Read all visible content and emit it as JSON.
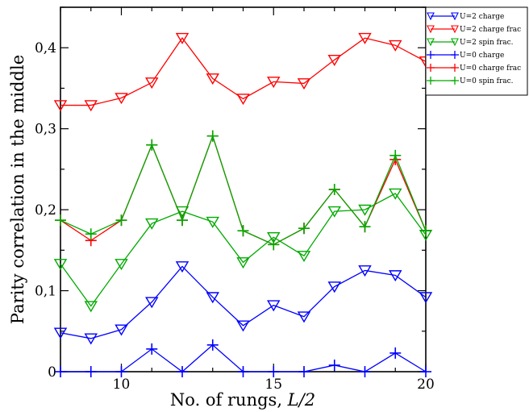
{
  "chart_data": {
    "type": "line",
    "xlabel": "No. of rungs, ",
    "xlabel_italic": "L/2",
    "ylabel": "Parity correlation in the middle",
    "xlim": [
      8,
      20
    ],
    "ylim": [
      0,
      0.45
    ],
    "xticks": [
      {
        "v": 10,
        "label": "10"
      },
      {
        "v": 15,
        "label": "15"
      },
      {
        "v": 20,
        "label": "20"
      }
    ],
    "yticks": [
      {
        "v": 0,
        "label": "0"
      },
      {
        "v": 0.1,
        "label": "0,1"
      },
      {
        "v": 0.2,
        "label": "0,2"
      },
      {
        "v": 0.3,
        "label": "0,3"
      },
      {
        "v": 0.4,
        "label": "0,4"
      }
    ],
    "x_minor_step": 1,
    "y_minor_step": 0.05,
    "grid": false,
    "legend_position": "top-right",
    "series": [
      {
        "name": "U=2 charge",
        "color": "#0000ff",
        "marker": "triangle-down",
        "x": [
          8,
          9,
          10,
          11,
          12,
          13,
          14,
          15,
          16,
          17,
          18,
          19,
          20
        ],
        "values": [
          0.048,
          0.041,
          0.052,
          0.086,
          0.13,
          0.092,
          0.057,
          0.082,
          0.068,
          0.105,
          0.125,
          0.119,
          0.092
        ]
      },
      {
        "name": "U=2 charge frac",
        "color": "#ff0000",
        "marker": "triangle-down",
        "x": [
          8,
          9,
          10,
          11,
          12,
          13,
          14,
          15,
          16,
          17,
          18,
          19,
          20
        ],
        "values": [
          0.329,
          0.329,
          0.338,
          0.357,
          0.412,
          0.362,
          0.337,
          0.358,
          0.356,
          0.385,
          0.412,
          0.403,
          0.383
        ]
      },
      {
        "name": "U=2 spin frac.",
        "color": "#00aa00",
        "marker": "triangle-down",
        "x": [
          8,
          9,
          10,
          11,
          12,
          13,
          14,
          15,
          16,
          17,
          18,
          19,
          20
        ],
        "values": [
          0.133,
          0.081,
          0.133,
          0.183,
          0.198,
          0.185,
          0.135,
          0.166,
          0.143,
          0.198,
          0.2,
          0.22,
          0.169
        ]
      },
      {
        "name": "U=0 charge",
        "color": "#0000ff",
        "marker": "plus",
        "x": [
          8,
          9,
          10,
          11,
          12,
          13,
          14,
          15,
          16,
          17,
          18,
          19,
          20
        ],
        "values": [
          0.0,
          0.0,
          0.0,
          0.028,
          0.0,
          0.033,
          0.0,
          0.0,
          0.0,
          0.008,
          0.0,
          0.023,
          0.0
        ]
      },
      {
        "name": "U=0 charge frac",
        "color": "#ff0000",
        "marker": "plus",
        "x": [
          8,
          9,
          10,
          11,
          12,
          13,
          14,
          15,
          16,
          17,
          18,
          19,
          20
        ],
        "values": [
          0.187,
          0.162,
          0.187,
          0.28,
          0.187,
          0.291,
          0.174,
          0.157,
          0.177,
          0.225,
          0.179,
          0.262,
          0.174
        ]
      },
      {
        "name": "U=0 spin frac.",
        "color": "#00aa00",
        "marker": "plus",
        "x": [
          8,
          9,
          10,
          11,
          12,
          13,
          14,
          15,
          16,
          17,
          18,
          19,
          20
        ],
        "values": [
          0.187,
          0.17,
          0.187,
          0.28,
          0.187,
          0.291,
          0.174,
          0.157,
          0.177,
          0.225,
          0.179,
          0.267,
          0.174
        ]
      }
    ]
  }
}
